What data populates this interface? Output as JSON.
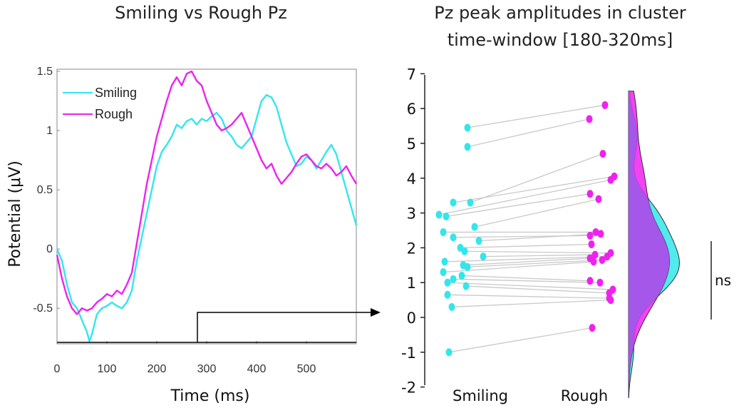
{
  "colors": {
    "smiling": "#33e6ec",
    "rough": "#ee22ee",
    "overlap": "#a05ae8"
  },
  "chart_data": [
    {
      "type": "line",
      "title": "Smiling vs Rough Pz",
      "xlabel": "Time (ms)",
      "ylabel": "Potential (μV)",
      "xlim": [
        0,
        600
      ],
      "ylim": [
        -0.8,
        1.5
      ],
      "xticks": [
        "0",
        "100",
        "200",
        "300",
        "400",
        "500"
      ],
      "yticks": [
        "1.5",
        "1",
        "0.5",
        "0",
        "-0.5"
      ],
      "legend": "top-left",
      "series": [
        {
          "name": "Smiling",
          "x": [
            0,
            10,
            20,
            30,
            40,
            50,
            60,
            65,
            70,
            80,
            90,
            100,
            110,
            120,
            130,
            140,
            150,
            160,
            170,
            180,
            190,
            200,
            210,
            220,
            230,
            240,
            250,
            260,
            270,
            280,
            290,
            300,
            310,
            320,
            330,
            340,
            350,
            360,
            370,
            380,
            390,
            400,
            410,
            420,
            430,
            440,
            450,
            460,
            470,
            480,
            490,
            500,
            510,
            520,
            530,
            540,
            550,
            560,
            570,
            580,
            590,
            600
          ],
          "y": [
            0.0,
            -0.1,
            -0.3,
            -0.45,
            -0.5,
            -0.6,
            -0.7,
            -0.78,
            -0.72,
            -0.55,
            -0.5,
            -0.48,
            -0.45,
            -0.48,
            -0.5,
            -0.45,
            -0.35,
            -0.1,
            0.1,
            0.3,
            0.5,
            0.7,
            0.82,
            0.88,
            0.95,
            1.05,
            1.02,
            1.08,
            1.1,
            1.05,
            1.1,
            1.08,
            1.12,
            1.15,
            1.1,
            1.0,
            0.95,
            0.88,
            0.85,
            0.9,
            0.95,
            1.1,
            1.25,
            1.3,
            1.28,
            1.2,
            1.05,
            0.9,
            0.8,
            0.7,
            0.72,
            0.78,
            0.75,
            0.68,
            0.75,
            0.82,
            0.88,
            0.8,
            0.65,
            0.5,
            0.35,
            0.2
          ]
        },
        {
          "name": "Rough",
          "x": [
            0,
            10,
            20,
            30,
            40,
            50,
            60,
            70,
            80,
            90,
            100,
            110,
            120,
            130,
            140,
            150,
            160,
            170,
            180,
            190,
            200,
            210,
            220,
            230,
            240,
            250,
            260,
            270,
            280,
            290,
            300,
            310,
            320,
            330,
            340,
            350,
            360,
            370,
            380,
            390,
            400,
            410,
            420,
            430,
            440,
            450,
            460,
            470,
            480,
            490,
            500,
            510,
            520,
            530,
            540,
            550,
            560,
            570,
            580,
            590,
            600
          ],
          "y": [
            -0.05,
            -0.25,
            -0.4,
            -0.5,
            -0.55,
            -0.5,
            -0.52,
            -0.5,
            -0.45,
            -0.42,
            -0.38,
            -0.4,
            -0.35,
            -0.38,
            -0.3,
            -0.2,
            0.05,
            0.3,
            0.55,
            0.75,
            0.95,
            1.1,
            1.25,
            1.38,
            1.45,
            1.38,
            1.48,
            1.5,
            1.42,
            1.38,
            1.25,
            1.15,
            1.05,
            1.0,
            1.02,
            1.05,
            1.1,
            1.15,
            1.05,
            0.95,
            0.85,
            0.75,
            0.68,
            0.72,
            0.62,
            0.55,
            0.6,
            0.65,
            0.72,
            0.78,
            0.8,
            0.75,
            0.7,
            0.68,
            0.72,
            0.68,
            0.62,
            0.65,
            0.7,
            0.62,
            0.55
          ]
        }
      ],
      "annotation": "arrow to cluster window plot"
    },
    {
      "type": "scatter",
      "title": "Pz peak amplitudes in cluster time-window [180-320ms]",
      "categories": [
        "Smiling",
        "Rough"
      ],
      "ylim": [
        -2,
        7
      ],
      "yticks": [
        "7",
        "6",
        "5",
        "4",
        "3",
        "2",
        "1",
        "0",
        "-1",
        "-2"
      ],
      "pairs": [
        {
          "smiling": 5.45,
          "rough": 6.1
        },
        {
          "smiling": 4.9,
          "rough": 5.7
        },
        {
          "smiling": 3.3,
          "rough": 4.7
        },
        {
          "smiling": 3.3,
          "rough": 4.05
        },
        {
          "smiling": 2.95,
          "rough": 3.95
        },
        {
          "smiling": 2.9,
          "rough": 3.55
        },
        {
          "smiling": 2.6,
          "rough": 3.4
        },
        {
          "smiling": 2.45,
          "rough": 2.45
        },
        {
          "smiling": 2.3,
          "rough": 2.35
        },
        {
          "smiling": 2.2,
          "rough": 2.4
        },
        {
          "smiling": 2.0,
          "rough": 2.1
        },
        {
          "smiling": 1.9,
          "rough": 1.85
        },
        {
          "smiling": 1.75,
          "rough": 1.8
        },
        {
          "smiling": 1.6,
          "rough": 1.75
        },
        {
          "smiling": 1.5,
          "rough": 1.7
        },
        {
          "smiling": 1.45,
          "rough": 1.65
        },
        {
          "smiling": 1.3,
          "rough": 1.6
        },
        {
          "smiling": 1.2,
          "rough": 1.05
        },
        {
          "smiling": 1.1,
          "rough": 1.0
        },
        {
          "smiling": 1.0,
          "rough": 0.8
        },
        {
          "smiling": 0.9,
          "rough": 0.7
        },
        {
          "smiling": 0.65,
          "rough": 0.55
        },
        {
          "smiling": 0.3,
          "rough": 0.5
        },
        {
          "smiling": -1.0,
          "rough": -0.3
        }
      ],
      "annotation": "ns"
    }
  ]
}
